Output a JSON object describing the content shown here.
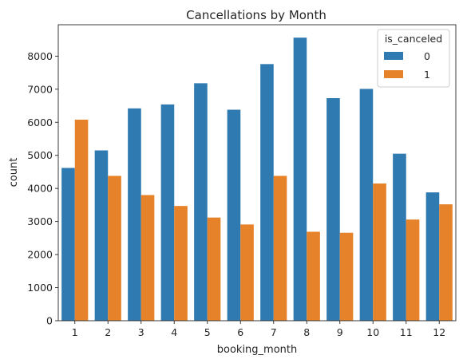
{
  "chart_data": {
    "type": "bar",
    "title": "Cancellations by Month",
    "xlabel": "booking_month",
    "ylabel": "count",
    "categories": [
      "1",
      "2",
      "3",
      "4",
      "5",
      "6",
      "7",
      "8",
      "9",
      "10",
      "11",
      "12"
    ],
    "ylim": [
      0,
      8950
    ],
    "yticks": [
      "0",
      "1000",
      "2000",
      "3000",
      "4000",
      "5000",
      "6000",
      "7000",
      "8000"
    ],
    "legend": {
      "title": "is_canceled",
      "placement": "top-right"
    },
    "grid": false,
    "series": [
      {
        "name": "0",
        "color": "#2f7ab1",
        "values": [
          4620,
          5150,
          6420,
          6540,
          7180,
          6380,
          7760,
          8560,
          6730,
          7010,
          5050,
          3880
        ]
      },
      {
        "name": "1",
        "color": "#e6832a",
        "values": [
          6080,
          4380,
          3800,
          3470,
          3120,
          2910,
          4380,
          2690,
          2660,
          4150,
          3060,
          3520
        ]
      }
    ]
  }
}
